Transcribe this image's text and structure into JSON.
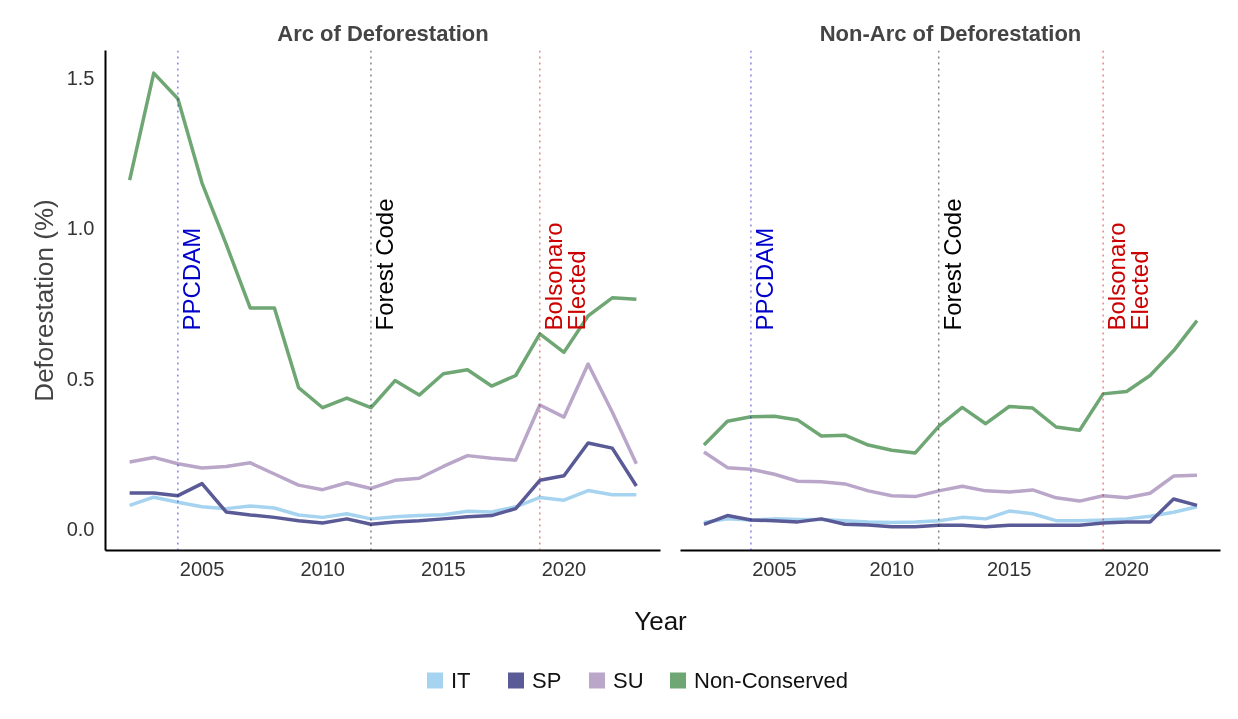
{
  "chart_data": [
    {
      "type": "line",
      "title": "Arc of Deforestation",
      "xlabel": "Year",
      "ylabel": "Deforestation (%)",
      "x": [
        2002,
        2003,
        2004,
        2005,
        2006,
        2007,
        2008,
        2009,
        2010,
        2011,
        2012,
        2013,
        2014,
        2015,
        2016,
        2017,
        2018,
        2019,
        2020,
        2021,
        2022,
        2023
      ],
      "series": [
        {
          "name": "IT",
          "color": "#a6d4f0",
          "values": [
            0.08,
            0.107,
            0.09,
            0.075,
            0.069,
            0.078,
            0.071,
            0.048,
            0.04,
            0.052,
            0.035,
            0.042,
            0.046,
            0.049,
            0.06,
            0.058,
            0.075,
            0.106,
            0.097,
            0.129,
            0.115,
            0.115
          ]
        },
        {
          "name": "SP",
          "color": "#5a5a96",
          "values": [
            0.121,
            0.121,
            0.112,
            0.152,
            0.058,
            0.048,
            0.04,
            0.029,
            0.021,
            0.035,
            0.017,
            0.025,
            0.029,
            0.035,
            0.042,
            0.046,
            0.069,
            0.163,
            0.178,
            0.287,
            0.27,
            0.144
          ]
        },
        {
          "name": "SU",
          "color": "#b9a6c9",
          "values": [
            0.224,
            0.239,
            0.218,
            0.204,
            0.209,
            0.221,
            0.184,
            0.147,
            0.132,
            0.155,
            0.136,
            0.163,
            0.17,
            0.209,
            0.245,
            0.236,
            0.23,
            0.413,
            0.373,
            0.549,
            0.39,
            0.218
          ]
        },
        {
          "name": "Non-Conserved",
          "color": "#6fa774",
          "values": [
            1.16,
            1.515,
            1.43,
            1.15,
            0.947,
            0.735,
            0.735,
            0.471,
            0.404,
            0.436,
            0.404,
            0.494,
            0.446,
            0.517,
            0.53,
            0.476,
            0.511,
            0.649,
            0.588,
            0.709,
            0.769,
            0.764
          ]
        }
      ],
      "xlim": [
        2001,
        2024
      ],
      "ylim": [
        -0.07,
        1.59
      ],
      "xticks": [
        2005,
        2010,
        2015,
        2020
      ],
      "yticks": [
        {
          "value": 0,
          "label": "0.0"
        },
        0.5,
        {
          "value": 1,
          "label": "1.0"
        },
        1.5
      ],
      "ref_lines": [
        {
          "axis": "x",
          "value": 2004,
          "label": "PPCDAM",
          "color": "#0000cc",
          "line_style": "dotted"
        },
        {
          "axis": "x",
          "value": 2012,
          "label": "Forest Code",
          "color": "#000000",
          "line_style": "dotted"
        },
        {
          "axis": "x",
          "value": 2019,
          "label": "Bolsonaro\nElected",
          "color": "#cc0000",
          "line_style": "dotted"
        }
      ],
      "grid": false,
      "legend": "bottom",
      "line_style": "solid",
      "marker": "none"
    },
    {
      "type": "line",
      "title": "Non-Arc of Deforestation",
      "x": [
        2002,
        2003,
        2004,
        2005,
        2006,
        2007,
        2008,
        2009,
        2010,
        2011,
        2012,
        2013,
        2014,
        2015,
        2016,
        2017,
        2018,
        2019,
        2020,
        2021,
        2022,
        2023
      ],
      "series": [
        {
          "name": "IT",
          "color": "#a6d4f0",
          "values": [
            0.023,
            0.035,
            0.031,
            0.035,
            0.033,
            0.033,
            0.029,
            0.025,
            0.023,
            0.025,
            0.029,
            0.04,
            0.035,
            0.061,
            0.052,
            0.029,
            0.029,
            0.031,
            0.035,
            0.044,
            0.057,
            0.075
          ]
        },
        {
          "name": "SP",
          "color": "#5a5a96",
          "values": [
            0.017,
            0.046,
            0.031,
            0.029,
            0.025,
            0.035,
            0.017,
            0.015,
            0.009,
            0.009,
            0.014,
            0.014,
            0.009,
            0.014,
            0.014,
            0.014,
            0.014,
            0.021,
            0.025,
            0.025,
            0.101,
            0.08
          ]
        },
        {
          "name": "SU",
          "color": "#b9a6c9",
          "values": [
            0.257,
            0.205,
            0.2,
            0.183,
            0.16,
            0.158,
            0.151,
            0.128,
            0.112,
            0.109,
            0.128,
            0.143,
            0.128,
            0.124,
            0.131,
            0.105,
            0.094,
            0.112,
            0.105,
            0.12,
            0.177,
            0.18
          ]
        },
        {
          "name": "Non-Conserved",
          "color": "#6fa774",
          "values": [
            0.28,
            0.359,
            0.374,
            0.376,
            0.363,
            0.31,
            0.313,
            0.28,
            0.263,
            0.254,
            0.342,
            0.405,
            0.351,
            0.408,
            0.403,
            0.34,
            0.329,
            0.45,
            0.458,
            0.511,
            0.593,
            0.693
          ]
        }
      ],
      "xlim": [
        2001,
        2024
      ],
      "ylim": [
        -0.07,
        1.59
      ],
      "xticks": [
        2005,
        2010,
        2015,
        2020
      ],
      "tick_labels": "x",
      "ref_lines": [
        {
          "axis": "x",
          "value": 2004,
          "label": "PPCDAM",
          "color": "#0000cc",
          "line_style": "dotted"
        },
        {
          "axis": "x",
          "value": 2012,
          "label": "Forest Code",
          "color": "#000000",
          "line_style": "dotted"
        },
        {
          "axis": "x",
          "value": 2019,
          "label": "Bolsonaro\nElected",
          "color": "#cc0000",
          "line_style": "dotted"
        }
      ],
      "grid": false,
      "line_style": "solid",
      "marker": "none"
    }
  ]
}
